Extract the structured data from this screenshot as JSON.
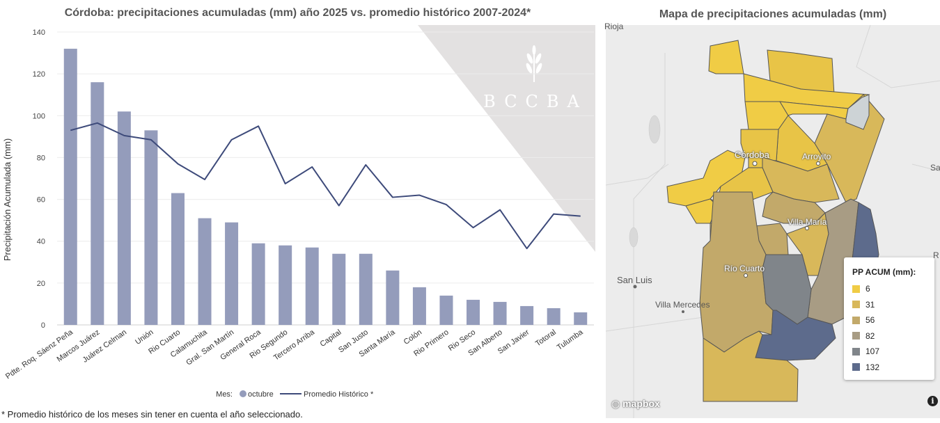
{
  "chart_title": "Córdoba: precipitaciones acumuladas (mm) año 2025 vs. promedio histórico 2007-2024*",
  "map_title": "Mapa de precipitaciones acumuladas (mm)",
  "footnote": "* Promedio histórico de los meses sin tener en cuenta el año seleccionado.",
  "watermark": "BCCBA",
  "chart_data": {
    "type": "bar",
    "title": "Córdoba: precipitaciones acumuladas (mm) año 2025 vs. promedio histórico 2007-2024*",
    "ylabel": "Precipitación Acumulada (mm)",
    "xlabel": "",
    "ylim": [
      0,
      140
    ],
    "yticks": [
      0,
      20,
      40,
      60,
      80,
      100,
      120,
      140
    ],
    "grid": true,
    "legend_position": "bottom",
    "legend_title": "Mes:",
    "categories": [
      "Pdte. Roq. Sáenz Peña",
      "Marcos Juárez",
      "Juárez Celman",
      "Unión",
      "Rio Cuarto",
      "Calamuchita",
      "Gral. San Martín",
      "General Roca",
      "Rio Segundo",
      "Tercero Arriba",
      "Capital",
      "San Justo",
      "Santa María",
      "Colón",
      "Rio Primero",
      "Rio Seco",
      "San Alberto",
      "San Javier",
      "Totoral",
      "Tulumba"
    ],
    "series": [
      {
        "name": "octubre",
        "type": "bar",
        "color": "#949cbb",
        "values": [
          132,
          116,
          102,
          93,
          63,
          51,
          49,
          39,
          38,
          37,
          34,
          34,
          26,
          18,
          14,
          12,
          11,
          9,
          8,
          6
        ]
      },
      {
        "name": "Promedio Histórico *",
        "type": "line",
        "color": "#3d4a7a",
        "values": [
          93,
          96.5,
          90.5,
          88.5,
          77,
          69.5,
          88.5,
          95,
          67.5,
          75.5,
          57,
          76.5,
          61,
          62,
          57.5,
          46.5,
          55,
          36.5,
          53,
          52
        ]
      }
    ]
  },
  "map": {
    "cities": [
      "Córdoba",
      "Arroyito",
      "Villa María",
      "Río Cuarto",
      "San Luis",
      "Villa Mercedes"
    ],
    "edge_labels": [
      "Rioja",
      "Sa",
      "R"
    ],
    "attribution": "mapbox",
    "info_icon": "i",
    "legend": {
      "title": "PP ACUM (mm):",
      "items": [
        {
          "label": "6",
          "color": "#f0cc45"
        },
        {
          "label": "31",
          "color": "#d8b85a"
        },
        {
          "label": "56",
          "color": "#c2a96a"
        },
        {
          "label": "82",
          "color": "#a89c84"
        },
        {
          "label": "107",
          "color": "#80858a"
        },
        {
          "label": "132",
          "color": "#5d6b8c"
        }
      ]
    }
  }
}
